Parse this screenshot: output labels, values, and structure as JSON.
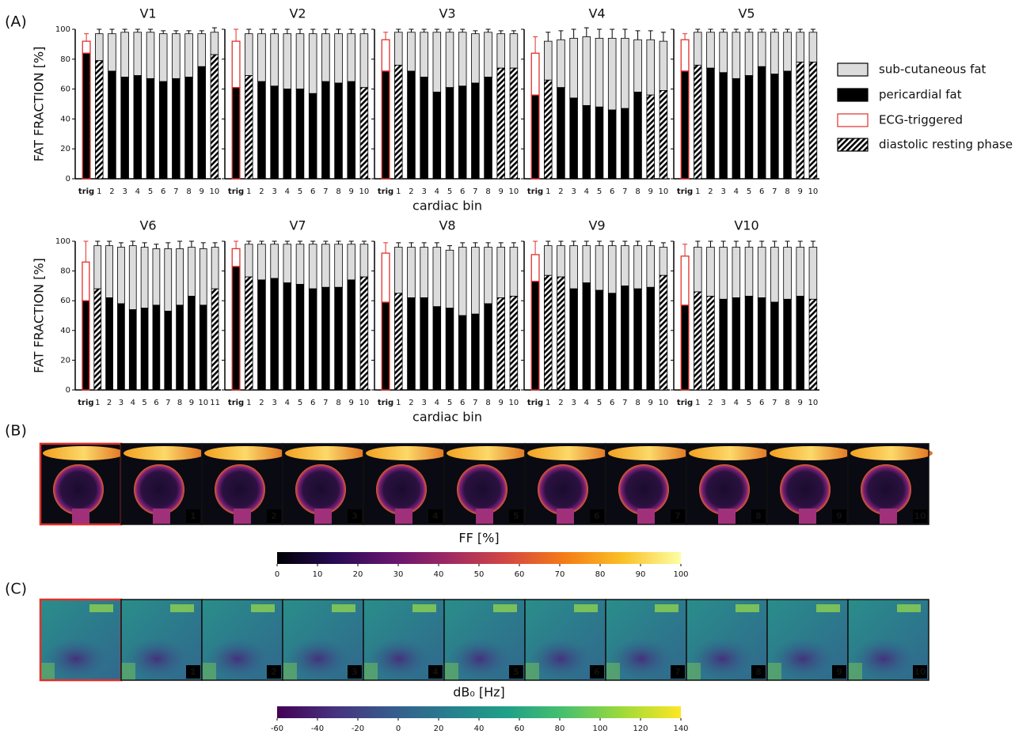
{
  "panel_labels": [
    "(A)",
    "(B)",
    "(C)"
  ],
  "legend": [
    "sub-cutaneous fat",
    "pericardial fat",
    "ECG-triggered",
    "diastolic resting phase"
  ],
  "images": [
    {
      "style": "ff",
      "tiles": [
        "1",
        "2",
        "3",
        "4",
        "5",
        "6",
        "7",
        "8",
        "9",
        "10"
      ]
    },
    {
      "style": "db0",
      "tiles": [
        "1",
        "2",
        "3",
        "4",
        "5",
        "6",
        "7",
        "8",
        "9",
        "10"
      ]
    }
  ],
  "chart_data": [
    {
      "type": "bar",
      "title": "V1",
      "ylabel": "FAT FRACTION [%]",
      "categories": [
        "trig",
        "1",
        "2",
        "3",
        "4",
        "5",
        "6",
        "7",
        "8",
        "9",
        "10"
      ],
      "triggered": "trig",
      "trigger_color": "#e0312b",
      "hatched": [
        "1",
        "10"
      ],
      "ylim": [
        0,
        100
      ],
      "yticks": [
        0,
        20,
        40,
        60,
        80,
        100
      ],
      "series": [
        {
          "color": "#000000",
          "values": [
            84,
            79,
            72,
            68,
            69,
            67,
            65,
            67,
            68,
            75,
            83
          ]
        },
        {
          "color": "#dcdcdc",
          "values": [
            8,
            18,
            25,
            30,
            29,
            31,
            32,
            30,
            29,
            22,
            15
          ],
          "errors": [
            5,
            3,
            3,
            2,
            2,
            2,
            2,
            2,
            2,
            2,
            3
          ]
        }
      ]
    },
    {
      "type": "bar",
      "title": "V2",
      "categories": [
        "trig",
        "1",
        "2",
        "3",
        "4",
        "5",
        "6",
        "7",
        "8",
        "9",
        "10"
      ],
      "triggered": "trig",
      "trigger_color": "#e0312b",
      "hatched": [
        "1",
        "10"
      ],
      "ylim": [
        0,
        100
      ],
      "yticks": [
        0,
        20,
        40,
        60,
        80,
        100
      ],
      "series": [
        {
          "color": "#000000",
          "values": [
            61,
            69,
            65,
            62,
            60,
            60,
            57,
            65,
            64,
            65,
            61
          ]
        },
        {
          "color": "#dcdcdc",
          "values": [
            31,
            28,
            32,
            35,
            37,
            37,
            40,
            32,
            33,
            32,
            36
          ],
          "errors": [
            8,
            3,
            3,
            3,
            3,
            3,
            3,
            3,
            3,
            3,
            3
          ]
        }
      ]
    },
    {
      "type": "bar",
      "title": "V3",
      "xlabel": "cardiac bin",
      "categories": [
        "trig",
        "1",
        "2",
        "3",
        "4",
        "5",
        "6",
        "7",
        "8",
        "9",
        "10"
      ],
      "triggered": "trig",
      "trigger_color": "#e0312b",
      "hatched": [
        "1",
        "9",
        "10"
      ],
      "ylim": [
        0,
        100
      ],
      "yticks": [
        0,
        20,
        40,
        60,
        80,
        100
      ],
      "series": [
        {
          "color": "#000000",
          "values": [
            72,
            76,
            72,
            68,
            58,
            61,
            62,
            64,
            68,
            74,
            74
          ]
        },
        {
          "color": "#dcdcdc",
          "values": [
            21,
            22,
            26,
            30,
            40,
            37,
            36,
            33,
            30,
            23,
            23
          ],
          "errors": [
            5,
            2,
            2,
            2,
            2,
            2,
            2,
            2,
            2,
            2,
            2
          ]
        }
      ]
    },
    {
      "type": "bar",
      "title": "V4",
      "categories": [
        "trig",
        "1",
        "2",
        "3",
        "4",
        "5",
        "6",
        "7",
        "8",
        "9",
        "10"
      ],
      "triggered": "trig",
      "trigger_color": "#e0312b",
      "hatched": [
        "1",
        "9",
        "10"
      ],
      "ylim": [
        0,
        100
      ],
      "yticks": [
        0,
        20,
        40,
        60,
        80,
        100
      ],
      "series": [
        {
          "color": "#000000",
          "values": [
            56,
            66,
            61,
            54,
            49,
            48,
            46,
            47,
            58,
            56,
            59
          ]
        },
        {
          "color": "#dcdcdc",
          "values": [
            28,
            26,
            32,
            40,
            46,
            46,
            48,
            47,
            35,
            37,
            33
          ],
          "errors": [
            11,
            6,
            6,
            6,
            6,
            6,
            6,
            6,
            6,
            6,
            6
          ]
        }
      ]
    },
    {
      "type": "bar",
      "title": "V5",
      "categories": [
        "trig",
        "1",
        "2",
        "3",
        "4",
        "5",
        "6",
        "7",
        "8",
        "9",
        "10"
      ],
      "triggered": "trig",
      "trigger_color": "#e0312b",
      "hatched": [
        "1",
        "9",
        "10"
      ],
      "ylim": [
        0,
        100
      ],
      "yticks": [
        0,
        20,
        40,
        60,
        80,
        100
      ],
      "series": [
        {
          "color": "#000000",
          "values": [
            72,
            76,
            74,
            71,
            67,
            69,
            75,
            70,
            72,
            78,
            78
          ]
        },
        {
          "color": "#dcdcdc",
          "values": [
            21,
            22,
            24,
            27,
            31,
            29,
            23,
            28,
            26,
            20,
            20
          ],
          "errors": [
            4,
            2,
            2,
            2,
            2,
            2,
            2,
            2,
            2,
            2,
            2
          ]
        }
      ]
    },
    {
      "type": "bar",
      "title": "V6",
      "ylabel": "FAT FRACTION [%]",
      "categories": [
        "trig",
        "1",
        "2",
        "3",
        "4",
        "5",
        "6",
        "7",
        "8",
        "9",
        "10",
        "11"
      ],
      "triggered": "trig",
      "trigger_color": "#e0312b",
      "hatched": [
        "1",
        "11"
      ],
      "ylim": [
        0,
        100
      ],
      "yticks": [
        0,
        20,
        40,
        60,
        80,
        100
      ],
      "series": [
        {
          "color": "#000000",
          "values": [
            60,
            68,
            62,
            58,
            54,
            55,
            57,
            53,
            57,
            63,
            57,
            68
          ]
        },
        {
          "color": "#dcdcdc",
          "values": [
            26,
            29,
            35,
            38,
            43,
            41,
            38,
            42,
            38,
            33,
            38,
            28
          ],
          "errors": [
            14,
            3,
            3,
            3,
            3,
            3,
            3,
            4,
            5,
            4,
            4,
            3
          ]
        }
      ]
    },
    {
      "type": "bar",
      "title": "V7",
      "categories": [
        "trig",
        "1",
        "2",
        "3",
        "4",
        "5",
        "6",
        "7",
        "8",
        "9",
        "10"
      ],
      "triggered": "trig",
      "trigger_color": "#e0312b",
      "hatched": [
        "1",
        "10"
      ],
      "ylim": [
        0,
        100
      ],
      "yticks": [
        0,
        20,
        40,
        60,
        80,
        100
      ],
      "series": [
        {
          "color": "#000000",
          "values": [
            83,
            76,
            74,
            75,
            72,
            71,
            68,
            69,
            69,
            74,
            76
          ]
        },
        {
          "color": "#dcdcdc",
          "values": [
            12,
            22,
            24,
            23,
            26,
            27,
            30,
            29,
            29,
            24,
            22
          ],
          "errors": [
            5,
            2,
            2,
            2,
            2,
            2,
            2,
            2,
            2,
            2,
            2
          ]
        }
      ]
    },
    {
      "type": "bar",
      "title": "V8",
      "xlabel": "cardiac bin",
      "categories": [
        "trig",
        "1",
        "2",
        "3",
        "4",
        "5",
        "6",
        "7",
        "8",
        "9",
        "10"
      ],
      "triggered": "trig",
      "trigger_color": "#e0312b",
      "hatched": [
        "1",
        "9",
        "10"
      ],
      "ylim": [
        0,
        100
      ],
      "yticks": [
        0,
        20,
        40,
        60,
        80,
        100
      ],
      "series": [
        {
          "color": "#000000",
          "values": [
            59,
            65,
            62,
            62,
            56,
            55,
            50,
            51,
            58,
            62,
            63
          ]
        },
        {
          "color": "#dcdcdc",
          "values": [
            33,
            31,
            34,
            34,
            40,
            39,
            46,
            45,
            38,
            34,
            33
          ],
          "errors": [
            7,
            3,
            3,
            3,
            3,
            3,
            3,
            3,
            3,
            3,
            3
          ]
        }
      ]
    },
    {
      "type": "bar",
      "title": "V9",
      "categories": [
        "trig",
        "1",
        "2",
        "3",
        "4",
        "5",
        "6",
        "7",
        "8",
        "9",
        "10"
      ],
      "triggered": "trig",
      "trigger_color": "#e0312b",
      "hatched": [
        "1",
        "2",
        "10"
      ],
      "ylim": [
        0,
        100
      ],
      "yticks": [
        0,
        20,
        40,
        60,
        80,
        100
      ],
      "series": [
        {
          "color": "#000000",
          "values": [
            73,
            77,
            76,
            68,
            72,
            67,
            65,
            70,
            68,
            69,
            77
          ]
        },
        {
          "color": "#dcdcdc",
          "values": [
            18,
            20,
            21,
            29,
            25,
            30,
            32,
            27,
            29,
            28,
            19
          ],
          "errors": [
            9,
            3,
            3,
            3,
            3,
            3,
            3,
            3,
            3,
            3,
            3
          ]
        }
      ]
    },
    {
      "type": "bar",
      "title": "V10",
      "categories": [
        "trig",
        "1",
        "2",
        "3",
        "4",
        "5",
        "6",
        "7",
        "8",
        "9",
        "10"
      ],
      "triggered": "trig",
      "trigger_color": "#e0312b",
      "hatched": [
        "1",
        "2",
        "10"
      ],
      "ylim": [
        0,
        100
      ],
      "yticks": [
        0,
        20,
        40,
        60,
        80,
        100
      ],
      "series": [
        {
          "color": "#000000",
          "values": [
            57,
            66,
            63,
            61,
            62,
            63,
            62,
            59,
            61,
            63,
            61
          ]
        },
        {
          "color": "#dcdcdc",
          "values": [
            33,
            30,
            33,
            35,
            34,
            33,
            34,
            37,
            35,
            33,
            35
          ],
          "errors": [
            8,
            4,
            4,
            4,
            4,
            4,
            4,
            4,
            4,
            4,
            4
          ]
        }
      ]
    },
    {
      "type": "colorbar",
      "title": "FF [%]",
      "xlim": [
        0,
        100
      ],
      "xticks": [
        0,
        10,
        20,
        30,
        40,
        50,
        60,
        70,
        80,
        90,
        100
      ],
      "colors": [
        "#000004",
        "#280b54",
        "#65156e",
        "#9f2a63",
        "#d44842",
        "#f57d15",
        "#fac127",
        "#fcffa4"
      ]
    },
    {
      "type": "colorbar",
      "title": "dB₀ [Hz]",
      "xlim": [
        -60,
        140
      ],
      "xticks": [
        -60,
        -40,
        -20,
        0,
        20,
        40,
        60,
        80,
        100,
        120,
        140
      ],
      "colors": [
        "#440154",
        "#46327e",
        "#365c8d",
        "#277f8e",
        "#1fa187",
        "#4ac16d",
        "#a0da39",
        "#fde725"
      ]
    }
  ]
}
